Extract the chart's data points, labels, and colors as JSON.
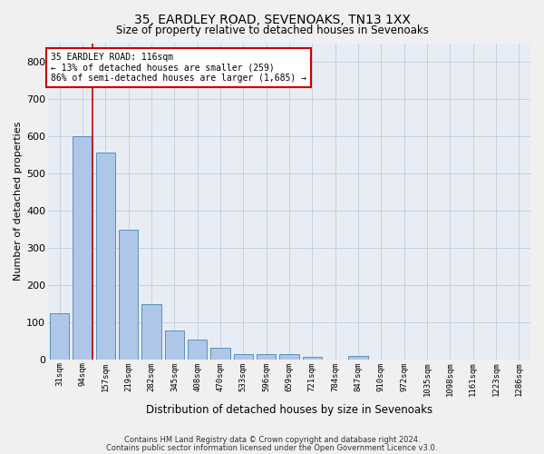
{
  "title1": "35, EARDLEY ROAD, SEVENOAKS, TN13 1XX",
  "title2": "Size of property relative to detached houses in Sevenoaks",
  "xlabel": "Distribution of detached houses by size in Sevenoaks",
  "ylabel": "Number of detached properties",
  "categories": [
    "31sqm",
    "94sqm",
    "157sqm",
    "219sqm",
    "282sqm",
    "345sqm",
    "408sqm",
    "470sqm",
    "533sqm",
    "596sqm",
    "659sqm",
    "721sqm",
    "784sqm",
    "847sqm",
    "910sqm",
    "972sqm",
    "1035sqm",
    "1098sqm",
    "1161sqm",
    "1223sqm",
    "1286sqm"
  ],
  "values": [
    125,
    600,
    555,
    348,
    148,
    78,
    52,
    30,
    15,
    13,
    13,
    7,
    0,
    8,
    0,
    0,
    0,
    0,
    0,
    0,
    0
  ],
  "bar_color": "#aec6e8",
  "bar_edge_color": "#5a8fbd",
  "marker_line_color": "#cc0000",
  "annotation_line1": "35 EARDLEY ROAD: 116sqm",
  "annotation_line2": "← 13% of detached houses are smaller (259)",
  "annotation_line3": "86% of semi-detached houses are larger (1,685) →",
  "annotation_box_color": "#cc0000",
  "annotation_bg": "#ffffff",
  "ylim": [
    0,
    850
  ],
  "yticks": [
    0,
    100,
    200,
    300,
    400,
    500,
    600,
    700,
    800
  ],
  "grid_color": "#c8d0dc",
  "bg_color": "#e8edf5",
  "fig_bg_color": "#f0f0f0",
  "footer1": "Contains HM Land Registry data © Crown copyright and database right 2024.",
  "footer2": "Contains public sector information licensed under the Open Government Licence v3.0."
}
